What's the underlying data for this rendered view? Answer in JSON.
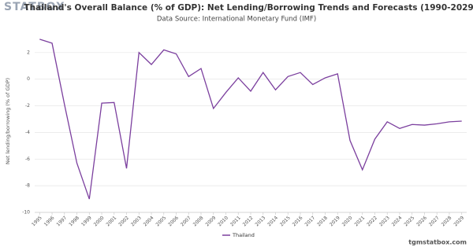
{
  "logo": "STATBOX",
  "chart_data": {
    "type": "line",
    "title": "Thailand's Overall Balance (% of GDP): Net Lending/Borrowing Trends and Forecasts (1990-2029)",
    "subtitle": "Data Source: International Monetary Fund (IMF)",
    "y_label": "Net lending/borrowing (% of GDP)",
    "x": [
      1995,
      1996,
      1997,
      1998,
      1999,
      2000,
      2001,
      2002,
      2003,
      2004,
      2005,
      2006,
      2007,
      2008,
      2009,
      2010,
      2011,
      2012,
      2013,
      2014,
      2015,
      2016,
      2017,
      2018,
      2019,
      2020,
      2021,
      2022,
      2023,
      2024,
      2025,
      2026,
      2027,
      2028,
      2029
    ],
    "xlim": [
      1994.6,
      2029.4
    ],
    "xticks": [
      1995,
      1996,
      1997,
      1998,
      1999,
      2000,
      2001,
      2002,
      2003,
      2004,
      2005,
      2006,
      2007,
      2008,
      2009,
      2010,
      2011,
      2012,
      2013,
      2014,
      2015,
      2016,
      2017,
      2018,
      2019,
      2020,
      2021,
      2022,
      2023,
      2024,
      2025,
      2026,
      2027,
      2028,
      2029
    ],
    "series": [
      {
        "name": "Thailand",
        "color": "#7b3f9e",
        "values": [
          3.0,
          2.7,
          -1.9,
          -6.3,
          -9.0,
          -1.8,
          -1.75,
          -6.7,
          2.0,
          1.1,
          2.2,
          1.9,
          0.2,
          0.8,
          -2.2,
          -1.0,
          0.1,
          -0.9,
          0.5,
          -0.8,
          0.2,
          0.5,
          -0.4,
          0.1,
          0.4,
          -4.6,
          -6.8,
          -4.5,
          -3.2,
          -3.7,
          -3.4,
          -3.45,
          -3.35,
          -3.2,
          -3.15
        ]
      }
    ],
    "ylim": [
      -10,
      3.7
    ],
    "yticks": [
      -10,
      -8,
      -6,
      -4,
      -2,
      0,
      2
    ],
    "grid": true,
    "legend": "bottom",
    "watermark": "tgmstatbox.com"
  }
}
